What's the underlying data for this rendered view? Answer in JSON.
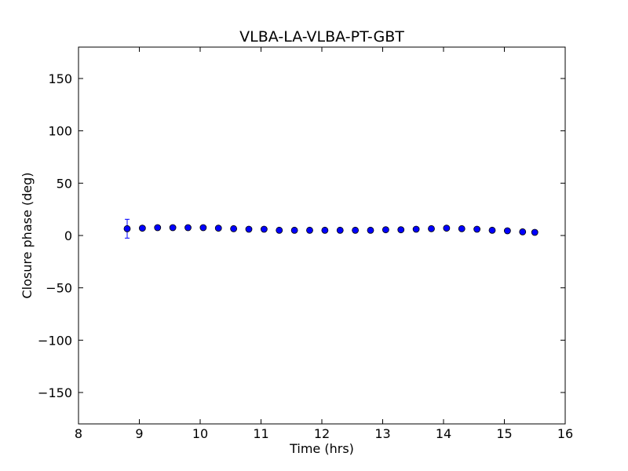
{
  "chart_data": {
    "type": "scatter",
    "title": "VLBA-LA-VLBA-PT-GBT",
    "xlabel": "Time (hrs)",
    "ylabel": "Closure phase (deg)",
    "xlim": [
      8,
      16
    ],
    "ylim": [
      -180,
      180
    ],
    "xticks": [
      8,
      9,
      10,
      11,
      12,
      13,
      14,
      15,
      16
    ],
    "xtick_labels": [
      "8",
      "9",
      "10",
      "11",
      "12",
      "13",
      "14",
      "15",
      "16"
    ],
    "yticks": [
      150,
      100,
      50,
      0,
      -50,
      -100,
      -150
    ],
    "ytick_labels": [
      "150",
      "100",
      "50",
      "0",
      "−50",
      "−100",
      "−150"
    ],
    "grid": false,
    "marker_color": "#0000ff",
    "errorbar_color": "#0000ff",
    "series": [
      {
        "x": [
          8.8,
          9.05,
          9.3,
          9.55,
          9.8,
          10.05,
          10.3,
          10.55,
          10.8,
          11.05,
          11.3,
          11.55,
          11.8,
          12.05,
          12.3,
          12.55,
          12.8,
          13.05,
          13.3,
          13.55,
          13.8,
          14.05,
          14.3,
          14.55,
          14.8,
          15.05,
          15.3,
          15.5
        ],
        "y": [
          6.5,
          7.0,
          7.5,
          7.5,
          7.5,
          7.5,
          7.0,
          6.5,
          6.0,
          6.0,
          5.0,
          5.0,
          5.0,
          5.0,
          5.0,
          5.0,
          5.0,
          5.5,
          5.5,
          6.0,
          6.5,
          7.0,
          6.5,
          6.0,
          5.0,
          4.5,
          3.5,
          3.0
        ],
        "yerr": [
          9.0,
          1.5,
          1.5,
          1.5,
          1.5,
          1.5,
          1.5,
          1.5,
          1.5,
          1.5,
          1.5,
          1.5,
          1.5,
          1.5,
          1.5,
          1.5,
          1.5,
          1.5,
          1.5,
          1.5,
          1.5,
          1.5,
          1.5,
          1.5,
          1.5,
          1.5,
          1.5,
          2.0
        ]
      }
    ]
  }
}
